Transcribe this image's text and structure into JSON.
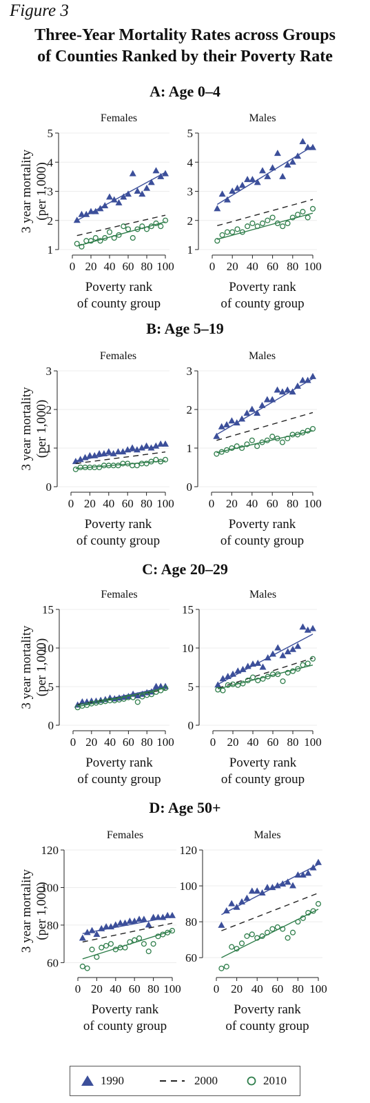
{
  "figure_label": "Figure 3",
  "title_lines": [
    "Three-Year Mortality Rates across Groups",
    "of Counties Ranked by their Poverty Rate"
  ],
  "rows": [
    {
      "title": "A: Age 0–4"
    },
    {
      "title": "B: Age 5–19"
    },
    {
      "title": "C: Age 20–29"
    },
    {
      "title": "D: Age 50+"
    }
  ],
  "legend": [
    {
      "label": "1990",
      "marker": "triangle",
      "color": "#3c4f9a"
    },
    {
      "label": "2000",
      "marker": "dashed-line",
      "color": "#222222"
    },
    {
      "label": "2010",
      "marker": "circle",
      "color": "#2e7d4a"
    }
  ],
  "colors": {
    "s1990": "#3c4f9a",
    "s2010": "#2e7d4a",
    "s2000": "#222222",
    "grid": "#ececec"
  },
  "chart_data": [
    {
      "type": "scatter",
      "panel": "A: Age 0–4 / Females",
      "title": "Females",
      "xlabel": [
        "Poverty rank",
        "of county group"
      ],
      "ylabel": [
        "3 year mortality",
        "(per 1,000)"
      ],
      "xlim": [
        0,
        100
      ],
      "xticks": [
        0,
        20,
        40,
        60,
        80,
        100
      ],
      "ylim": [
        1,
        5
      ],
      "yticks": [
        1,
        2,
        3,
        4,
        5
      ],
      "grid": "horizontal",
      "x": [
        5,
        10,
        15,
        20,
        25,
        30,
        35,
        40,
        45,
        50,
        55,
        60,
        65,
        70,
        75,
        80,
        85,
        90,
        95,
        100
      ],
      "series": [
        {
          "name": "1990",
          "marker": "triangle",
          "values": [
            2.0,
            2.2,
            2.2,
            2.3,
            2.3,
            2.4,
            2.5,
            2.8,
            2.7,
            2.6,
            2.8,
            2.9,
            3.6,
            3.0,
            2.9,
            3.1,
            3.3,
            3.7,
            3.5,
            3.6
          ],
          "fit": [
            2.0,
            3.65
          ]
        },
        {
          "name": "2000",
          "marker": "none",
          "fit": [
            1.48,
            2.18
          ]
        },
        {
          "name": "2010",
          "marker": "circle",
          "values": [
            1.2,
            1.1,
            1.3,
            1.3,
            1.4,
            1.3,
            1.4,
            1.6,
            1.4,
            1.5,
            1.8,
            1.7,
            1.4,
            1.7,
            1.8,
            1.7,
            1.8,
            1.9,
            1.8,
            2.0
          ],
          "fit": [
            1.12,
            1.95
          ]
        }
      ]
    },
    {
      "type": "scatter",
      "panel": "A: Age 0–4 / Males",
      "title": "Males",
      "xlabel": [
        "Poverty rank",
        "of county group"
      ],
      "xlim": [
        0,
        100
      ],
      "xticks": [
        0,
        20,
        40,
        60,
        80,
        100
      ],
      "ylim": [
        1,
        5
      ],
      "yticks": [
        1,
        2,
        3,
        4,
        5
      ],
      "grid": "horizontal",
      "x": [
        5,
        10,
        15,
        20,
        25,
        30,
        35,
        40,
        45,
        50,
        55,
        60,
        65,
        70,
        75,
        80,
        85,
        90,
        95,
        100
      ],
      "series": [
        {
          "name": "1990",
          "marker": "triangle",
          "values": [
            2.4,
            2.9,
            2.7,
            3.0,
            3.1,
            3.2,
            3.4,
            3.4,
            3.3,
            3.7,
            3.5,
            3.8,
            4.3,
            3.5,
            3.9,
            4.0,
            4.2,
            4.7,
            4.5,
            4.5
          ],
          "fit": [
            2.55,
            4.55
          ]
        },
        {
          "name": "2000",
          "marker": "none",
          "fit": [
            1.82,
            2.72
          ]
        },
        {
          "name": "2010",
          "marker": "circle",
          "values": [
            1.3,
            1.5,
            1.6,
            1.6,
            1.7,
            1.6,
            1.8,
            1.9,
            1.8,
            1.9,
            2.0,
            2.1,
            1.9,
            1.8,
            1.9,
            2.1,
            2.2,
            2.3,
            2.1,
            2.4
          ],
          "fit": [
            1.35,
            2.25
          ]
        }
      ]
    },
    {
      "type": "scatter",
      "panel": "B: Age 5–19 / Females",
      "title": "Females",
      "xlabel": [
        "Poverty rank",
        "of county group"
      ],
      "ylabel": [
        "3 year mortality",
        "(per 1,000)"
      ],
      "xlim": [
        0,
        100
      ],
      "xticks": [
        0,
        20,
        40,
        60,
        80,
        100
      ],
      "ylim": [
        0,
        3
      ],
      "yticks": [
        0,
        1,
        2,
        3
      ],
      "grid": "horizontal",
      "x": [
        5,
        10,
        15,
        20,
        25,
        30,
        35,
        40,
        45,
        50,
        55,
        60,
        65,
        70,
        75,
        80,
        85,
        90,
        95,
        100
      ],
      "series": [
        {
          "name": "1990",
          "marker": "triangle",
          "values": [
            0.65,
            0.7,
            0.75,
            0.8,
            0.8,
            0.85,
            0.85,
            0.9,
            0.85,
            0.9,
            0.9,
            0.95,
            1.0,
            0.95,
            1.0,
            1.05,
            1.0,
            1.05,
            1.1,
            1.1
          ],
          "fit": [
            0.67,
            1.08
          ]
        },
        {
          "name": "2000",
          "marker": "none",
          "fit": [
            0.6,
            0.9
          ]
        },
        {
          "name": "2010",
          "marker": "circle",
          "values": [
            0.45,
            0.5,
            0.5,
            0.5,
            0.5,
            0.5,
            0.55,
            0.55,
            0.55,
            0.55,
            0.6,
            0.6,
            0.55,
            0.55,
            0.6,
            0.6,
            0.65,
            0.7,
            0.65,
            0.7
          ],
          "fit": [
            0.47,
            0.67
          ]
        }
      ]
    },
    {
      "type": "scatter",
      "panel": "B: Age 5–19 / Males",
      "title": "Males",
      "xlabel": [
        "Poverty rank",
        "of county group"
      ],
      "xlim": [
        0,
        100
      ],
      "xticks": [
        0,
        20,
        40,
        60,
        80,
        100
      ],
      "ylim": [
        0,
        3
      ],
      "yticks": [
        0,
        1,
        2,
        3
      ],
      "grid": "horizontal",
      "x": [
        5,
        10,
        15,
        20,
        25,
        30,
        35,
        40,
        45,
        50,
        55,
        60,
        65,
        70,
        75,
        80,
        85,
        90,
        95,
        100
      ],
      "series": [
        {
          "name": "1990",
          "marker": "triangle",
          "values": [
            1.3,
            1.55,
            1.6,
            1.7,
            1.65,
            1.75,
            1.9,
            2.0,
            1.9,
            2.1,
            2.25,
            2.25,
            2.5,
            2.45,
            2.5,
            2.45,
            2.6,
            2.75,
            2.75,
            2.85
          ],
          "fit": [
            1.35,
            2.8
          ]
        },
        {
          "name": "2000",
          "marker": "none",
          "fit": [
            1.2,
            1.92
          ]
        },
        {
          "name": "2010",
          "marker": "circle",
          "values": [
            0.85,
            0.9,
            0.95,
            1.0,
            1.05,
            1.0,
            1.1,
            1.2,
            1.05,
            1.15,
            1.2,
            1.3,
            1.25,
            1.15,
            1.25,
            1.35,
            1.35,
            1.4,
            1.45,
            1.5
          ],
          "fit": [
            0.88,
            1.45
          ]
        }
      ]
    },
    {
      "type": "scatter",
      "panel": "C: Age 20–29 / Females",
      "title": "Females",
      "xlabel": [
        "Poverty rank",
        "of county group"
      ],
      "ylabel": [
        "3 year mortality",
        "(per 1,000)"
      ],
      "xlim": [
        0,
        100
      ],
      "xticks": [
        0,
        20,
        40,
        60,
        80,
        100
      ],
      "ylim": [
        0,
        15
      ],
      "yticks": [
        0,
        5,
        10,
        15
      ],
      "grid": "horizontal",
      "x": [
        5,
        10,
        15,
        20,
        25,
        30,
        35,
        40,
        45,
        50,
        55,
        60,
        65,
        70,
        75,
        80,
        85,
        90,
        95,
        100
      ],
      "series": [
        {
          "name": "1990",
          "marker": "triangle",
          "values": [
            2.6,
            3.0,
            3.0,
            3.1,
            3.1,
            3.2,
            3.3,
            3.5,
            3.4,
            3.5,
            3.6,
            3.7,
            4.0,
            3.8,
            4.0,
            4.2,
            4.3,
            5.0,
            5.0,
            5.0
          ],
          "fit": [
            2.6,
            4.9
          ]
        },
        {
          "name": "2000",
          "marker": "none",
          "fit": [
            2.7,
            4.6
          ]
        },
        {
          "name": "2010",
          "marker": "circle",
          "values": [
            2.3,
            2.5,
            2.6,
            2.8,
            2.9,
            3.0,
            3.1,
            3.2,
            3.2,
            3.3,
            3.4,
            3.6,
            3.6,
            3.0,
            3.7,
            3.9,
            4.0,
            4.3,
            4.5,
            4.8
          ],
          "fit": [
            2.4,
            4.8
          ]
        }
      ]
    },
    {
      "type": "scatter",
      "panel": "C: Age 20–29 / Males",
      "title": "Males",
      "xlabel": [
        "Poverty rank",
        "of county group"
      ],
      "xlim": [
        0,
        100
      ],
      "xticks": [
        0,
        20,
        40,
        60,
        80,
        100
      ],
      "ylim": [
        0,
        15
      ],
      "yticks": [
        0,
        5,
        10,
        15
      ],
      "grid": "horizontal",
      "x": [
        5,
        10,
        15,
        20,
        25,
        30,
        35,
        40,
        45,
        50,
        55,
        60,
        65,
        70,
        75,
        80,
        85,
        90,
        95,
        100
      ],
      "series": [
        {
          "name": "1990",
          "marker": "triangle",
          "values": [
            5.2,
            6.0,
            6.3,
            6.6,
            7.0,
            7.2,
            7.6,
            7.9,
            8.0,
            7.5,
            8.7,
            9.2,
            10.0,
            9.0,
            9.5,
            9.8,
            10.2,
            12.7,
            12.3,
            12.5
          ],
          "fit": [
            5.3,
            11.8
          ]
        },
        {
          "name": "2000",
          "marker": "none",
          "fit": [
            4.8,
            8.7
          ]
        },
        {
          "name": "2010",
          "marker": "circle",
          "values": [
            4.6,
            4.5,
            5.2,
            5.3,
            5.2,
            5.4,
            5.8,
            6.2,
            5.8,
            6.0,
            6.3,
            6.6,
            6.6,
            5.7,
            6.8,
            7.0,
            7.3,
            7.8,
            8.0,
            8.6
          ],
          "fit": [
            4.7,
            7.8
          ]
        }
      ]
    },
    {
      "type": "scatter",
      "panel": "D: Age 50+ / Females",
      "title": "Females",
      "xlabel": [
        "Poverty rank",
        "of county group"
      ],
      "ylabel": [
        "3 year mortality",
        "(per 1,000)"
      ],
      "xlim": [
        0,
        100
      ],
      "xticks": [
        0,
        20,
        40,
        60,
        80,
        100
      ],
      "ylim": [
        55,
        120
      ],
      "yticks": [
        60,
        80,
        100,
        120
      ],
      "grid": "horizontal",
      "x": [
        5,
        10,
        15,
        20,
        25,
        30,
        35,
        40,
        45,
        50,
        55,
        60,
        65,
        70,
        75,
        80,
        85,
        90,
        95,
        100
      ],
      "series": [
        {
          "name": "1990",
          "marker": "triangle",
          "values": [
            73,
            76,
            77,
            75,
            78,
            79,
            79,
            80,
            81,
            81,
            82,
            82,
            83,
            83,
            80,
            84,
            84,
            84,
            85,
            85
          ],
          "fit": [
            75.5,
            84.5
          ]
        },
        {
          "name": "2000",
          "marker": "none",
          "fit": [
            71.0,
            81.0
          ]
        },
        {
          "name": "2010",
          "marker": "circle",
          "values": [
            58,
            57,
            67,
            63,
            68,
            69,
            70,
            67,
            68,
            68,
            71,
            72,
            73,
            70,
            66,
            70,
            74,
            75,
            76,
            77
          ],
          "fit": [
            62.0,
            77.0
          ]
        }
      ]
    },
    {
      "type": "scatter",
      "panel": "D: Age 50+ / Males",
      "title": "Males",
      "xlabel": [
        "Poverty rank",
        "of county group"
      ],
      "xlim": [
        0,
        100
      ],
      "xticks": [
        0,
        20,
        40,
        60,
        80,
        100
      ],
      "ylim": [
        52,
        120
      ],
      "yticks": [
        60,
        80,
        100,
        120
      ],
      "grid": "horizontal",
      "x": [
        5,
        10,
        15,
        20,
        25,
        30,
        35,
        40,
        45,
        50,
        55,
        60,
        65,
        70,
        75,
        80,
        85,
        90,
        95,
        100
      ],
      "series": [
        {
          "name": "1990",
          "marker": "triangle",
          "values": [
            78,
            86,
            90,
            88,
            91,
            93,
            97,
            97,
            96,
            99,
            99,
            100,
            101,
            102,
            100,
            106,
            106,
            107,
            110,
            113
          ],
          "fit": [
            84.0,
            112.0
          ]
        },
        {
          "name": "2000",
          "marker": "none",
          "fit": [
            75.0,
            96.0
          ]
        },
        {
          "name": "2010",
          "marker": "circle",
          "values": [
            54,
            55,
            66,
            65,
            68,
            72,
            73,
            71,
            72,
            74,
            76,
            77,
            76,
            71,
            74,
            80,
            82,
            85,
            86,
            90
          ],
          "fit": [
            60.0,
            87.0
          ]
        }
      ]
    }
  ]
}
